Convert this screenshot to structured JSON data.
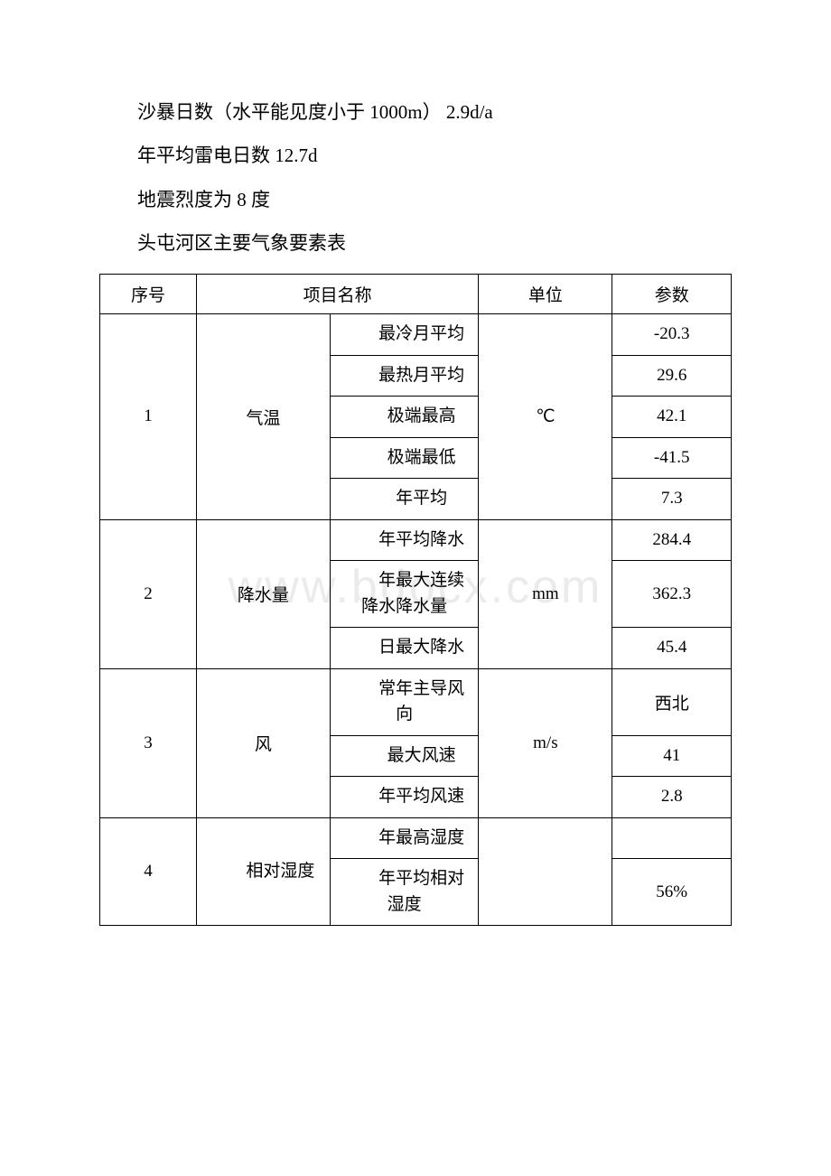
{
  "intro": {
    "line1": "沙暴日数（水平能见度小于 1000m） 2.9d/a",
    "line2": "年平均雷电日数 12.7d",
    "line3": "地震烈度为 8 度",
    "line4": "头屯河区主要气象要素表"
  },
  "watermark": "www.bdocx.com",
  "table": {
    "headers": {
      "seq": "序号",
      "name": "项目名称",
      "unit": "单位",
      "param": "参数"
    },
    "groups": [
      {
        "seq": "1",
        "name": "气温",
        "unit": "℃",
        "rows": [
          {
            "sub": "最冷月平均",
            "param": "-20.3"
          },
          {
            "sub": "最热月平均",
            "param": "29.6"
          },
          {
            "sub": "极端最高",
            "param": "42.1"
          },
          {
            "sub": "极端最低",
            "param": "-41.5"
          },
          {
            "sub": "年平均",
            "param": "7.3"
          }
        ]
      },
      {
        "seq": "2",
        "name": "降水量",
        "unit": "mm",
        "rows": [
          {
            "sub": "年平均降水",
            "param": "284.4"
          },
          {
            "sub": "年最大连续降水降水量",
            "param": "362.3"
          },
          {
            "sub": "日最大降水",
            "param": "45.4"
          }
        ]
      },
      {
        "seq": "3",
        "name": "风",
        "unit": "m/s",
        "rows": [
          {
            "sub": "常年主导风向",
            "param": "西北"
          },
          {
            "sub": "最大风速",
            "param": "41"
          },
          {
            "sub": "年平均风速",
            "param": "2.8"
          }
        ]
      },
      {
        "seq": "4",
        "name": "相对湿度",
        "unit": "",
        "rows": [
          {
            "sub": "年最高湿度",
            "param": ""
          },
          {
            "sub": "年平均相对湿度",
            "param": "56%"
          }
        ]
      }
    ]
  },
  "style": {
    "background_color": "#ffffff",
    "text_color": "#000000",
    "border_color": "#000000",
    "watermark_color": "#ebebeb",
    "body_fontsize": 21,
    "table_fontsize": 19
  }
}
